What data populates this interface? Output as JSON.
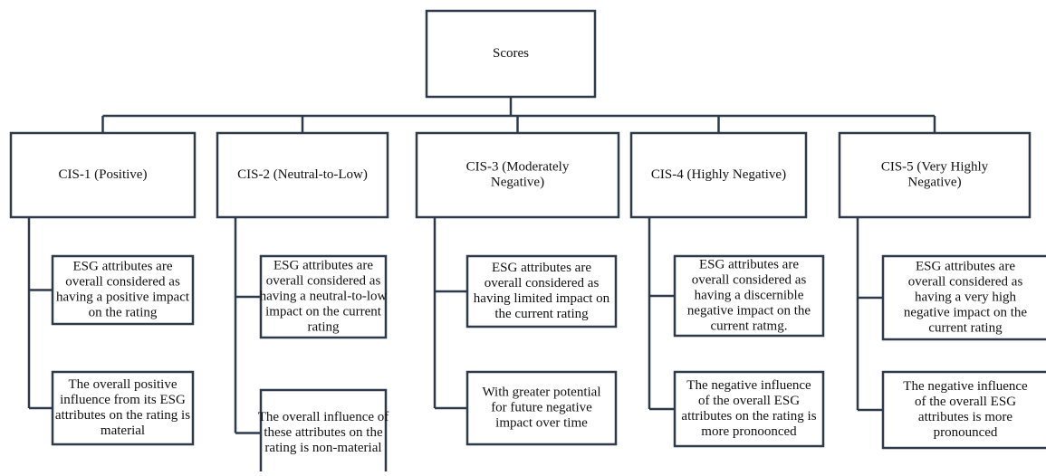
{
  "root": {
    "label": [
      "Scores"
    ]
  },
  "categories": [
    {
      "label": [
        "CIS-1 (Positive)"
      ],
      "children": [
        {
          "lines": [
            "ESG attributes are",
            "overall considered as",
            "having a positive impact",
            "on the rating"
          ]
        },
        {
          "lines": [
            "The overall positive",
            "influence from its ESG",
            "attributes on the rating is",
            "material"
          ]
        }
      ]
    },
    {
      "label": [
        "CIS-2 (Neutral-to-Low)"
      ],
      "children": [
        {
          "lines": [
            "ESG attributes are",
            "overall considered as",
            "having a neutral-to-low",
            "impact on the current",
            "rating"
          ]
        },
        {
          "lines": [
            "The overall influence of",
            "these attributes on the",
            "rating is non-material"
          ]
        }
      ]
    },
    {
      "label": [
        "CIS-3 (Moderately",
        "Negative)"
      ],
      "children": [
        {
          "lines": [
            "ESG attributes are",
            "overall considered as",
            "having limited impact on",
            "the current rating"
          ]
        },
        {
          "lines": [
            "With greater potential",
            "for future negative",
            "impact over time"
          ]
        }
      ]
    },
    {
      "label": [
        "CIS-4 (Highly Negative)"
      ],
      "children": [
        {
          "lines": [
            "ESG attributes are",
            "overall considered as",
            "having a discernible",
            "negative impact on the",
            "current ratmg."
          ]
        },
        {
          "lines": [
            "The negative influence",
            "of the overall ESG",
            "attributes on the rating is",
            "more pronoonced"
          ]
        }
      ]
    },
    {
      "label": [
        "CIS-5 (Very Highly",
        "Negative)"
      ],
      "children": [
        {
          "lines": [
            "ESG attributes are",
            "overall considered as",
            "having a very high",
            "negative impact on the",
            "current rating"
          ]
        },
        {
          "lines": [
            "The negative influence",
            "of the overall ESG",
            "attributes is more",
            "pronounced"
          ]
        }
      ]
    }
  ]
}
